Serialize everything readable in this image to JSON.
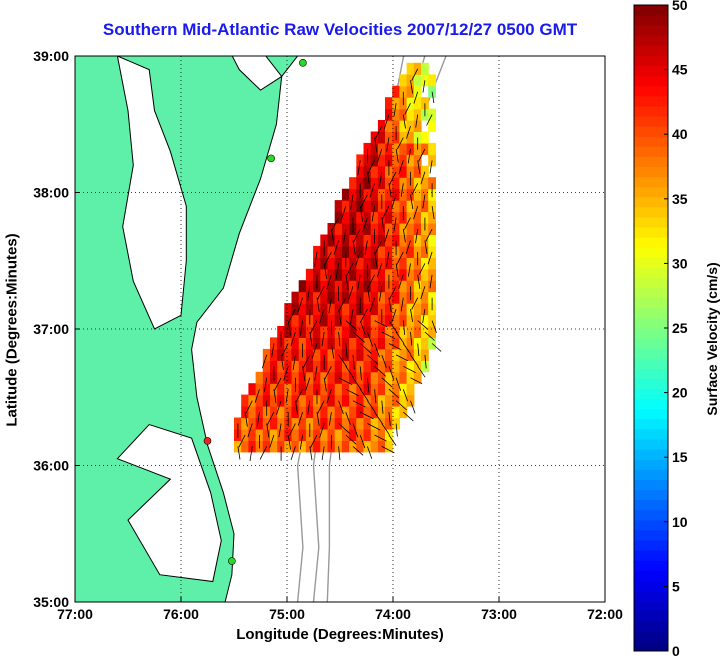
{
  "chart_data": {
    "type": "heatmap",
    "title": "Southern Mid-Atlantic Raw Velocities 2007/12/27 0500 GMT",
    "xlabel": "Longitude (Degrees:Minutes)",
    "ylabel": "Latitude (Degrees:Minutes)",
    "colorbar_label": "Surface Velocity (cm/s)",
    "x_ticks": [
      "77:00",
      "76:00",
      "75:00",
      "74:00",
      "73:00",
      "72:00"
    ],
    "y_ticks": [
      "39:00",
      "38:00",
      "37:00",
      "36:00",
      "35:00"
    ],
    "colorbar_ticks": [
      "0",
      "5",
      "10",
      "15",
      "20",
      "25",
      "30",
      "35",
      "40",
      "45",
      "50"
    ],
    "xlim": [
      -77,
      -72
    ],
    "ylim": [
      35,
      39
    ],
    "clim": [
      0,
      50
    ],
    "grid": true,
    "colors": {
      "land": "#5ef0a8",
      "coastline": "#000000",
      "bathymetry": "#999999",
      "title": "#1a1aee",
      "station_markers": [
        "#22dd22",
        "#ee2222"
      ]
    }
  }
}
